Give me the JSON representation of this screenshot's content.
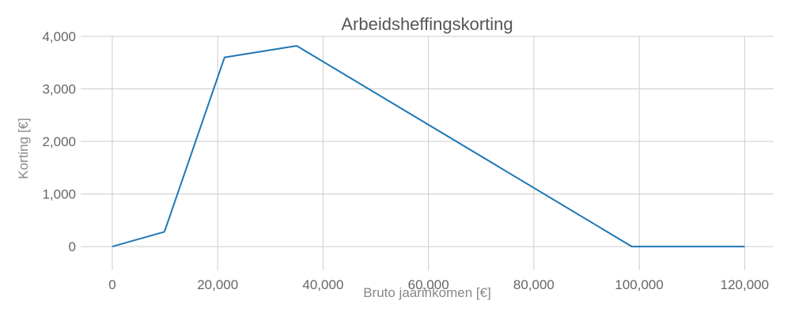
{
  "chart_data": {
    "type": "line",
    "title": "Arbeidsheffingskorting",
    "xlabel": "Bruto jaarinkomen [€]",
    "ylabel": "Korting [€]",
    "xlim": [
      -6000,
      125500
    ],
    "ylim": [
      -450,
      4000
    ],
    "xticks": [
      0,
      20000,
      40000,
      60000,
      80000,
      100000,
      120000
    ],
    "xtick_labels": [
      "0",
      "20,000",
      "40,000",
      "60,000",
      "80,000",
      "100,000",
      "120,000"
    ],
    "yticks": [
      0,
      1000,
      2000,
      3000,
      4000
    ],
    "ytick_labels": [
      "0",
      "1,000",
      "2,000",
      "3,000",
      "4,000"
    ],
    "grid": true,
    "color": "#1f77b4",
    "series": [
      {
        "x": [
          0,
          9900,
          21300,
          35000,
          98600,
          120000
        ],
        "y": [
          0,
          280,
          3600,
          3820,
          0,
          0
        ]
      }
    ]
  }
}
